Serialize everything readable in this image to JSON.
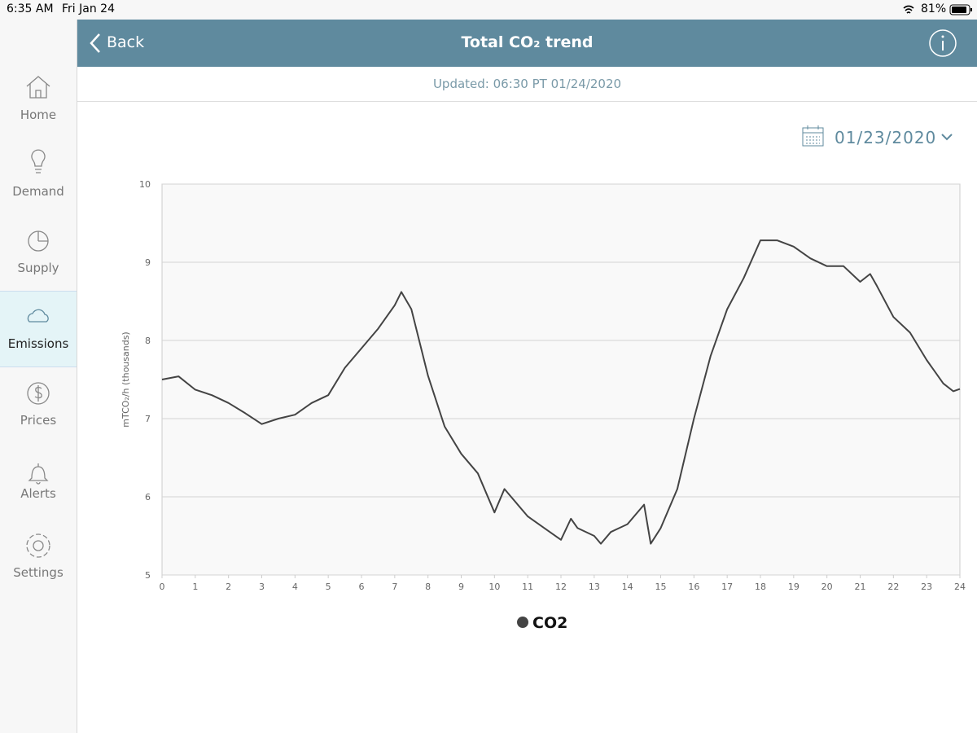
{
  "status_bar": {
    "time": "6:35 AM",
    "date": "Fri Jan 24",
    "battery": "81%"
  },
  "nav": {
    "items": [
      "Home",
      "Demand",
      "Supply",
      "Emissions",
      "Prices",
      "Alerts",
      "Settings"
    ],
    "selected": 3
  },
  "header": {
    "back": "Back",
    "title": "Total CO₂ trend"
  },
  "updated": "Updated: 06:30 PT 01/24/2020",
  "date_picker": "01/23/2020",
  "chart_data": {
    "type": "line",
    "y_label": "mTCO₂/h (thousands)",
    "x": [
      0,
      0.5,
      1,
      1.5,
      2,
      2.5,
      3,
      3.5,
      4,
      4.5,
      5,
      5.5,
      6,
      6.5,
      7,
      7.2,
      7.5,
      8,
      8.5,
      9,
      9.5,
      10,
      10.3,
      10.5,
      11,
      11.5,
      12,
      12.3,
      12.5,
      13,
      13.2,
      13.5,
      14,
      14.5,
      14.7,
      15,
      15.5,
      16,
      16.5,
      17,
      17.5,
      18,
      18.5,
      19,
      19.5,
      20,
      20.5,
      21,
      21.3,
      21.5,
      22,
      22.5,
      23,
      23.5,
      23.8,
      24
    ],
    "series": [
      {
        "name": "CO2",
        "color": "#444444",
        "values": [
          7.5,
          7.54,
          7.37,
          7.3,
          7.2,
          7.07,
          6.93,
          7.0,
          7.05,
          7.2,
          7.3,
          7.65,
          7.9,
          8.15,
          8.45,
          8.62,
          8.4,
          7.55,
          6.9,
          6.55,
          6.3,
          5.8,
          6.1,
          6.0,
          5.75,
          5.6,
          5.45,
          5.72,
          5.6,
          5.5,
          5.4,
          5.55,
          5.65,
          5.9,
          5.4,
          5.6,
          6.1,
          7.0,
          7.8,
          8.4,
          8.8,
          9.28,
          9.28,
          9.2,
          9.05,
          8.95,
          8.95,
          8.75,
          8.85,
          8.7,
          8.3,
          8.1,
          7.75,
          7.45,
          7.35,
          7.38
        ]
      }
    ],
    "xlim": [
      0,
      24
    ],
    "xticks": [
      0,
      1,
      2,
      3,
      4,
      5,
      6,
      7,
      8,
      9,
      10,
      11,
      12,
      13,
      14,
      15,
      16,
      17,
      18,
      19,
      20,
      21,
      22,
      23,
      24
    ],
    "ylim": [
      5,
      10
    ],
    "yticks": [
      5,
      6,
      7,
      8,
      9,
      10
    ],
    "grid": true,
    "legend": "bottom"
  }
}
